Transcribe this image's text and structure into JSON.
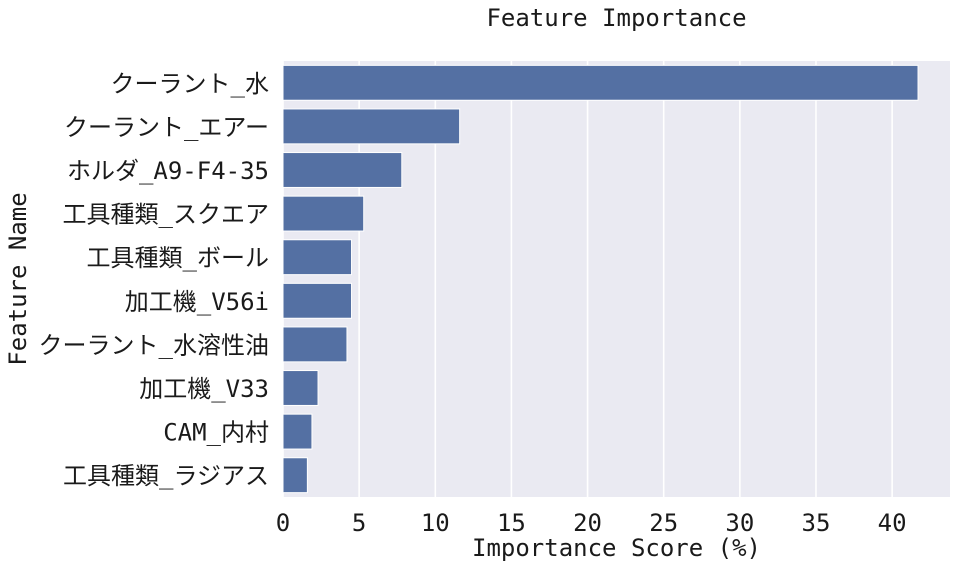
{
  "chart_data": {
    "type": "bar",
    "orientation": "horizontal",
    "title": "Feature Importance",
    "xlabel": "Importance Score (%)",
    "ylabel": "Feature Name",
    "categories": [
      "クーラント_水",
      "クーラント_エアー",
      "ホルダ_A9-F4-35",
      "工具種類_スクエア",
      "工具種類_ボール",
      "加工機_V56i",
      "クーラント_水溶性油",
      "加工機_V33",
      "CAM_内村",
      "工具種類_ラジアス"
    ],
    "values": [
      41.7,
      11.6,
      7.8,
      5.3,
      4.5,
      4.5,
      4.2,
      2.3,
      1.9,
      1.6
    ],
    "xlim": [
      0,
      43.8
    ],
    "xticks": [
      0,
      5,
      10,
      15,
      20,
      25,
      30,
      35,
      40
    ],
    "grid": true,
    "legend": "none",
    "colors": {
      "bar": "#5470a3",
      "background": "#eaeaf2",
      "grid": "#ffffff"
    }
  }
}
